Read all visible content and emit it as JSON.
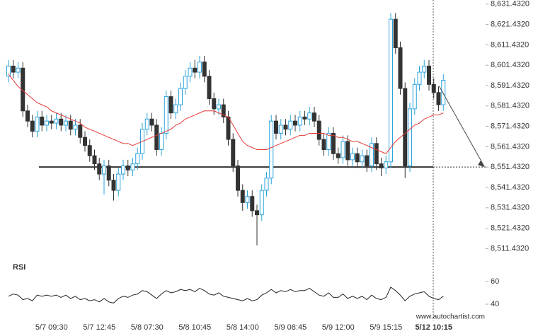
{
  "chart_data": [
    {
      "type": "candlestick",
      "categories": [
        null,
        null,
        null,
        null,
        null,
        null,
        null,
        null,
        null,
        "5/7 09:30",
        null,
        null,
        null,
        null,
        null,
        null,
        null,
        null,
        null,
        "5/7 12:45",
        null,
        null,
        null,
        null,
        null,
        null,
        null,
        null,
        null,
        "5/8 07:30",
        null,
        null,
        null,
        null,
        null,
        null,
        null,
        null,
        null,
        "5/8 10:45",
        null,
        null,
        null,
        null,
        null,
        null,
        null,
        null,
        null,
        "5/8 14:00",
        null,
        null,
        null,
        null,
        null,
        null,
        null,
        null,
        null,
        "5/9 08:45",
        null,
        null,
        null,
        null,
        null,
        null,
        null,
        null,
        null,
        "5/9 12:00",
        null,
        null,
        null,
        null,
        null,
        null,
        null,
        null,
        null,
        "5/9 15:15",
        null,
        null,
        null,
        null,
        null,
        null,
        null,
        null,
        null,
        "5/12 10:15",
        null,
        null
      ],
      "open": [
        8596,
        8601,
        8598,
        8600,
        8579,
        8574,
        8569,
        8576,
        8572,
        8574,
        8573,
        8575,
        8572,
        8574,
        8570,
        8572,
        8566,
        8562,
        8557,
        8553,
        8548,
        8552,
        8545,
        8540,
        8548,
        8552,
        8550,
        8553,
        8558,
        8570,
        8575,
        8572,
        8560,
        8568,
        8586,
        8578,
        8582,
        8590,
        8596,
        8600,
        8598,
        8603,
        8596,
        8585,
        8580,
        8582,
        8576,
        8565,
        8552,
        8540,
        8534,
        8537,
        8530,
        8528,
        8540,
        8546,
        8574,
        8568,
        8572,
        8570,
        8574,
        8572,
        8576,
        8575,
        8578,
        8574,
        8565,
        8560,
        8568,
        8558,
        8556,
        8564,
        8555,
        8558,
        8554,
        8557,
        8552,
        8563,
        8553,
        8551,
        8554,
        8624,
        8610,
        8590,
        8552,
        8580,
        8592,
        8598,
        8601,
        8592,
        8588,
        8582
      ],
      "high": [
        8604,
        8604,
        8603,
        8603,
        8582,
        8577,
        8579,
        8579,
        8577,
        8577,
        8578,
        8578,
        8577,
        8577,
        8575,
        8575,
        8569,
        8565,
        8560,
        8556,
        8555,
        8555,
        8548,
        8551,
        8555,
        8555,
        8556,
        8561,
        8573,
        8578,
        8578,
        8575,
        8571,
        8589,
        8589,
        8585,
        8593,
        8599,
        8603,
        8604,
        8606,
        8606,
        8599,
        8588,
        8585,
        8585,
        8579,
        8568,
        8555,
        8543,
        8540,
        8540,
        8533,
        8543,
        8549,
        8577,
        8577,
        8575,
        8575,
        8577,
        8577,
        8579,
        8579,
        8581,
        8581,
        8577,
        8568,
        8571,
        8571,
        8561,
        8567,
        8567,
        8561,
        8561,
        8560,
        8560,
        8566,
        8566,
        8556,
        8557,
        8627,
        8627,
        8613,
        8593,
        8583,
        8595,
        8601,
        8604,
        8604,
        8595,
        8591,
        8597
      ],
      "low": [
        8593,
        8595,
        8595,
        8576,
        8571,
        8566,
        8566,
        8569,
        8569,
        8570,
        8570,
        8569,
        8569,
        8567,
        8567,
        8563,
        8559,
        8554,
        8550,
        8545,
        8538,
        8542,
        8535,
        8537,
        8545,
        8547,
        8547,
        8550,
        8555,
        8567,
        8569,
        8557,
        8557,
        8565,
        8575,
        8575,
        8579,
        8587,
        8593,
        8595,
        8595,
        8593,
        8582,
        8577,
        8577,
        8573,
        8562,
        8549,
        8537,
        8530,
        8531,
        8527,
        8513,
        8525,
        8537,
        8543,
        8565,
        8565,
        8567,
        8567,
        8569,
        8569,
        8572,
        8572,
        8571,
        8562,
        8557,
        8557,
        8555,
        8553,
        8553,
        8552,
        8552,
        8551,
        8551,
        8549,
        8549,
        8550,
        8547,
        8548,
        8551,
        8607,
        8587,
        8546,
        8549,
        8577,
        8589,
        8595,
        8589,
        8585,
        8579,
        8579
      ],
      "close": [
        8601,
        8598,
        8600,
        8579,
        8574,
        8569,
        8576,
        8572,
        8574,
        8573,
        8575,
        8572,
        8574,
        8570,
        8572,
        8566,
        8562,
        8557,
        8553,
        8548,
        8552,
        8545,
        8540,
        8548,
        8552,
        8550,
        8553,
        8558,
        8570,
        8575,
        8572,
        8560,
        8568,
        8586,
        8578,
        8582,
        8590,
        8596,
        8600,
        8598,
        8603,
        8596,
        8585,
        8580,
        8582,
        8576,
        8565,
        8552,
        8540,
        8534,
        8537,
        8530,
        8528,
        8540,
        8546,
        8574,
        8568,
        8572,
        8570,
        8574,
        8572,
        8576,
        8575,
        8578,
        8574,
        8565,
        8560,
        8568,
        8558,
        8556,
        8564,
        8555,
        8558,
        8554,
        8557,
        8552,
        8563,
        8553,
        8551,
        8554,
        8624,
        8610,
        8590,
        8552,
        8580,
        8592,
        8598,
        8601,
        8592,
        8588,
        8582,
        8594
      ],
      "up_color": "#2aa3dc",
      "down_color": "#333333",
      "moving_average": {
        "color": "#e53935",
        "values": [
          8597,
          8594,
          8591,
          8589,
          8587,
          8585,
          8583,
          8582,
          8581,
          8579,
          8578,
          8577,
          8576,
          8575,
          8574,
          8573,
          8571,
          8570,
          8569,
          8568,
          8567,
          8566,
          8565,
          8564,
          8563,
          8563,
          8562,
          8563,
          8564,
          8565,
          8566,
          8567,
          8568,
          8569,
          8570,
          8572,
          8573,
          8575,
          8576,
          8577,
          8578,
          8579,
          8579,
          8579,
          8578,
          8577,
          8576,
          8572,
          8568,
          8564,
          8562,
          8561,
          8560,
          8560,
          8560,
          8561,
          8562,
          8563,
          8564,
          8565,
          8566,
          8567,
          8567,
          8568,
          8568,
          8568,
          8568,
          8567,
          8567,
          8566,
          8566,
          8565,
          8564,
          8564,
          8563,
          8562,
          8561,
          8560,
          8559,
          8558,
          8561,
          8564,
          8566,
          8568,
          8570,
          8572,
          8573,
          8575,
          8576,
          8577,
          8577,
          8578
        ]
      },
      "support": 8551.432,
      "ylim": [
        8506.432,
        8633.432
      ],
      "yticks": [
        {
          "value": 8631.432,
          "label": "8,631.4320"
        },
        {
          "value": 8621.432,
          "label": "8,621.4320"
        },
        {
          "value": 8611.432,
          "label": "8,611.4320"
        },
        {
          "value": 8601.432,
          "label": "8,601.4320"
        },
        {
          "value": 8591.432,
          "label": "8,591.4320"
        },
        {
          "value": 8581.432,
          "label": "8,581.4320"
        },
        {
          "value": 8571.432,
          "label": "8,571.4320"
        },
        {
          "value": 8561.432,
          "label": "8,561.4320"
        },
        {
          "value": 8551.432,
          "label": "8,551.4320"
        },
        {
          "value": 8541.432,
          "label": "8,541.4320"
        },
        {
          "value": 8531.432,
          "label": "8,531.4320"
        },
        {
          "value": 8521.432,
          "label": "8,521.4320"
        },
        {
          "value": 8511.432,
          "label": "8,511.4320"
        }
      ]
    },
    {
      "type": "line",
      "title": "RSI",
      "color": "#222222",
      "values": [
        47,
        49,
        48,
        44,
        45,
        43,
        48,
        47,
        48,
        47,
        48,
        46,
        48,
        45,
        47,
        44,
        45,
        43,
        44,
        42,
        45,
        42,
        41,
        45,
        47,
        46,
        48,
        49,
        52,
        51,
        48,
        45,
        49,
        52,
        50,
        51,
        53,
        52,
        53,
        51,
        54,
        52,
        49,
        48,
        50,
        47,
        46,
        45,
        44,
        43,
        45,
        43,
        44,
        48,
        50,
        53,
        50,
        52,
        51,
        53,
        51,
        52,
        52,
        54,
        51,
        48,
        47,
        50,
        46,
        46,
        49,
        45,
        47,
        45,
        47,
        44,
        48,
        45,
        44,
        46,
        55,
        52,
        48,
        43,
        47,
        49,
        50,
        51,
        47,
        45,
        44,
        47
      ],
      "ylim": [
        30,
        74
      ],
      "yticks": [
        60,
        40
      ]
    }
  ],
  "footer": "www.autochartist.com"
}
